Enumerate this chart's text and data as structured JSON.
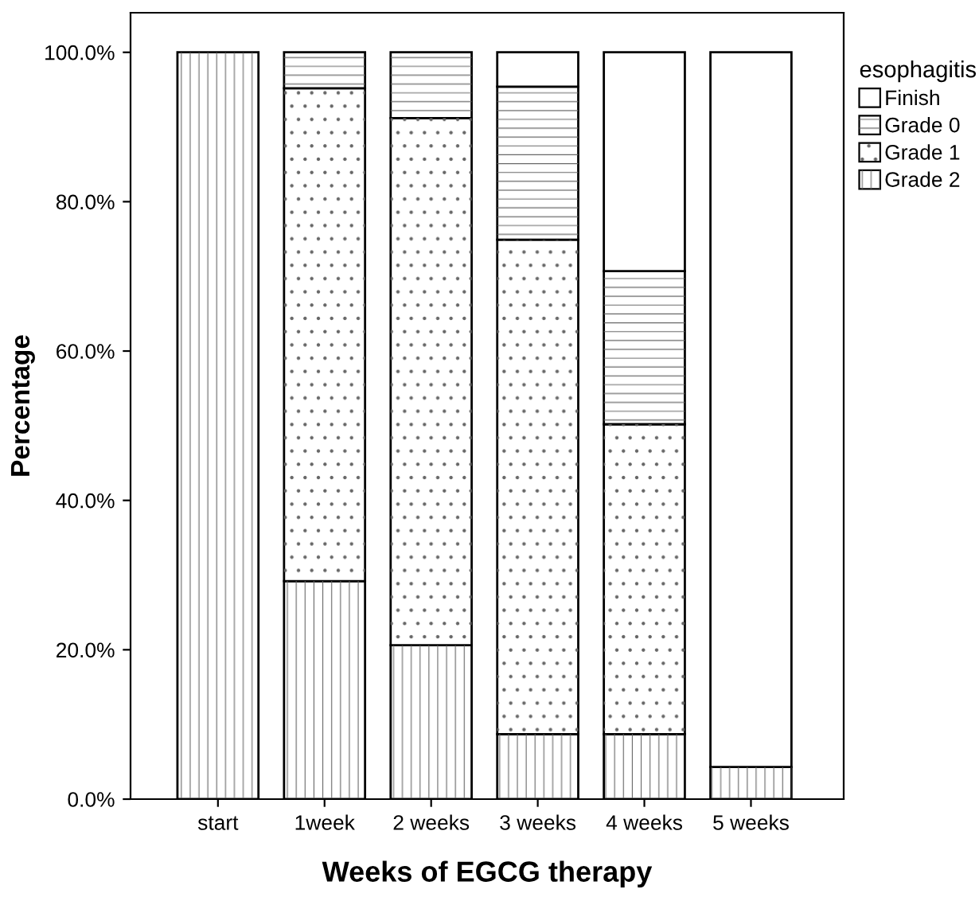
{
  "chart_data": {
    "type": "bar",
    "stacked": true,
    "xlabel": "Weeks of EGCG therapy",
    "ylabel": "Percentage",
    "legend_title": "esophagitis",
    "categories": [
      "start",
      "1week",
      "2 weeks",
      "3 weeks",
      "4 weeks",
      "5 weeks"
    ],
    "series": [
      {
        "name": "Grade 2",
        "color": "#ffffff",
        "values": [
          100,
          29.2,
          20.6,
          8.7,
          8.7,
          4.3
        ]
      },
      {
        "name": "Grade 1",
        "color": "#ffffff",
        "values": [
          null,
          66.0,
          70.6,
          66.2,
          41.5,
          null
        ]
      },
      {
        "name": "Grade 0",
        "color": "#ffffff",
        "values": [
          null,
          4.8,
          8.8,
          20.5,
          20.5,
          null
        ]
      },
      {
        "name": "Finish",
        "color": "#ffffff",
        "values": [
          null,
          null,
          null,
          4.6,
          29.3,
          95.7
        ]
      }
    ],
    "ylim": [
      0,
      105.3
    ],
    "yticks": [
      {
        "value": 0,
        "label": "0.0%"
      },
      {
        "value": 20,
        "label": "20.0%"
      },
      {
        "value": 40,
        "label": "40.0%"
      },
      {
        "value": 60,
        "label": "60.0%"
      },
      {
        "value": 80,
        "label": "80.0%"
      },
      {
        "value": 100,
        "label": "100.0%"
      }
    ],
    "grid": false,
    "legend": "right"
  }
}
